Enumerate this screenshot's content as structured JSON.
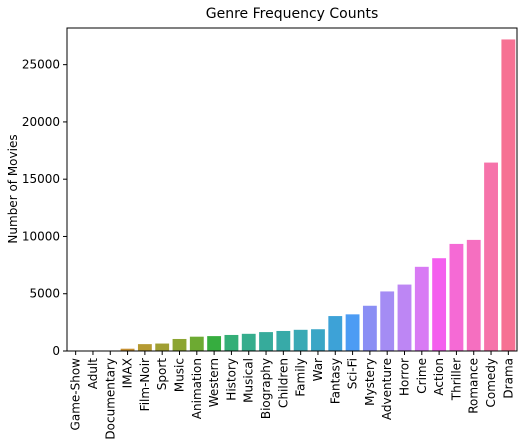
{
  "chart_data": {
    "type": "bar",
    "title": "Genre Frequency Counts",
    "xlabel": "",
    "ylabel": "Number of Movies",
    "ylim": [
      0,
      28200
    ],
    "yticks": [
      0,
      5000,
      10000,
      15000,
      20000,
      25000
    ],
    "ytick_labels": [
      "0",
      "5000",
      "10000",
      "15000",
      "20000",
      "25000"
    ],
    "grid": false,
    "legend": "none",
    "categories": [
      "Game-Show",
      "Adult",
      "Documentary",
      "IMAX",
      "Film-Noir",
      "Sport",
      "Music",
      "Animation",
      "Western",
      "History",
      "Musical",
      "Biography",
      "Children",
      "Family",
      "War",
      "Fantasy",
      "Sci-Fi",
      "Mystery",
      "Adventure",
      "Horror",
      "Crime",
      "Action",
      "Thriller",
      "Romance",
      "Comedy",
      "Drama"
    ],
    "values": [
      1,
      5,
      40,
      200,
      600,
      650,
      1050,
      1250,
      1300,
      1400,
      1500,
      1650,
      1750,
      1850,
      1900,
      3050,
      3200,
      3950,
      5200,
      5800,
      7350,
      8100,
      9350,
      9700,
      16450,
      27200
    ],
    "colors": [
      "#f77189",
      "#f2744b",
      "#e18432",
      "#c69032",
      "#b59a32",
      "#a09f32",
      "#8ca532",
      "#6daa32",
      "#36ad3f",
      "#34ae77",
      "#35ad8d",
      "#36ab9b",
      "#37aaa8",
      "#38a9b5",
      "#3aa6c6",
      "#3da2d7",
      "#4c9cf4",
      "#8a8ef4",
      "#a48cf4",
      "#bd86f4",
      "#d87af4",
      "#f45eee",
      "#f56ad5",
      "#f56fc0",
      "#f673aa",
      "#f67193"
    ]
  }
}
